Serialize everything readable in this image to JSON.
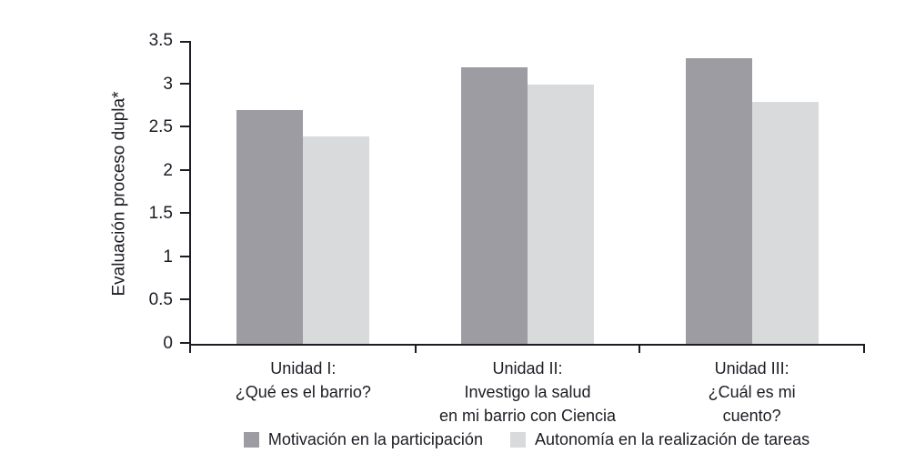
{
  "chart_data": {
    "type": "bar",
    "title": "",
    "xlabel": "",
    "ylabel": "Evaluación proceso dupla*",
    "ylim": [
      0,
      3.5
    ],
    "yticks": [
      0,
      0.5,
      1,
      1.5,
      2,
      2.5,
      3,
      3.5
    ],
    "grid": false,
    "legend_position": "bottom",
    "axis_color": "#1c1c24",
    "text_color": "#1c1c24",
    "categories": [
      "Unidad I:\n¿Qué es el barrio?",
      "Unidad II:\nInvestigo la salud\nen mi barrio con Ciencia",
      "Unidad III:\n¿Cuál es mi cuento?"
    ],
    "series": [
      {
        "name": "Motivación en la participación",
        "color": "#9c9ca2",
        "values": [
          2.7,
          3.2,
          3.3
        ]
      },
      {
        "name": "Autonomía en la realización de tareas",
        "color": "#d8dadc",
        "values": [
          2.4,
          3.0,
          2.8
        ]
      }
    ]
  }
}
